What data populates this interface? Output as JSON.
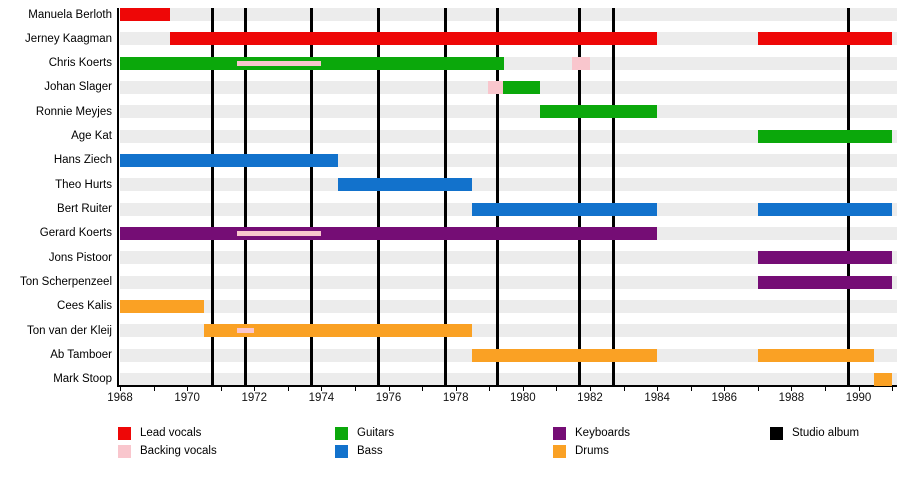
{
  "chart_data": {
    "type": "timeline",
    "x_axis": {
      "start": 1968,
      "end": 1991.2,
      "tick_interval": 1,
      "label_interval": 2,
      "tick_labels": [
        "1968",
        "1970",
        "1972",
        "1974",
        "1976",
        "1978",
        "1980",
        "1982",
        "1984",
        "1986",
        "1988",
        "1990"
      ]
    },
    "roles": {
      "Lead vocals": "#ee0707",
      "Backing vocals": "#f9c6cd",
      "Guitars": "#0ba80b",
      "Bass": "#1272cc",
      "Keyboards": "#750d75",
      "Drums": "#faa124",
      "Studio album": "#000000"
    },
    "albums": {
      "label": "Studio album",
      "years": [
        1970.75,
        1971.75,
        1973.7,
        1975.7,
        1977.7,
        1979.25,
        1981.7,
        1982.7,
        1989.7
      ]
    },
    "members": [
      {
        "name": "Manuela Berloth",
        "bars": [
          {
            "role": "Lead vocals",
            "start": 1968,
            "end": 1969.5
          }
        ]
      },
      {
        "name": "Jerney Kaagman",
        "bars": [
          {
            "role": "Lead vocals",
            "start": 1969.5,
            "end": 1984
          },
          {
            "role": "Lead vocals",
            "start": 1987,
            "end": 1991
          }
        ]
      },
      {
        "name": "Chris Koerts",
        "bars": [
          {
            "role": "Guitars",
            "start": 1968,
            "end": 1979.45
          },
          {
            "role": "Backing vocals",
            "start": 1971.5,
            "end": 1974,
            "overlay": true
          },
          {
            "role": "Backing vocals",
            "start": 1981.45,
            "end": 1982
          }
        ]
      },
      {
        "name": "Johan Slager",
        "bars": [
          {
            "role": "Backing vocals",
            "start": 1978.95,
            "end": 1979.4
          },
          {
            "role": "Guitars",
            "start": 1979.4,
            "end": 1980.5
          }
        ]
      },
      {
        "name": "Ronnie Meyjes",
        "bars": [
          {
            "role": "Guitars",
            "start": 1980.5,
            "end": 1984
          }
        ]
      },
      {
        "name": "Age Kat",
        "bars": [
          {
            "role": "Guitars",
            "start": 1987,
            "end": 1991
          }
        ]
      },
      {
        "name": "Hans Ziech",
        "bars": [
          {
            "role": "Bass",
            "start": 1968,
            "end": 1974.5
          }
        ]
      },
      {
        "name": "Theo Hurts",
        "bars": [
          {
            "role": "Bass",
            "start": 1974.5,
            "end": 1978.5
          }
        ]
      },
      {
        "name": "Bert Ruiter",
        "bars": [
          {
            "role": "Bass",
            "start": 1978.5,
            "end": 1984
          },
          {
            "role": "Bass",
            "start": 1987,
            "end": 1991
          }
        ]
      },
      {
        "name": "Gerard Koerts",
        "bars": [
          {
            "role": "Keyboards",
            "start": 1968,
            "end": 1984
          },
          {
            "role": "Backing vocals",
            "start": 1971.5,
            "end": 1974,
            "overlay": true
          }
        ]
      },
      {
        "name": "Jons Pistoor",
        "bars": [
          {
            "role": "Keyboards",
            "start": 1987,
            "end": 1991
          }
        ]
      },
      {
        "name": "Ton Scherpenzeel",
        "bars": [
          {
            "role": "Keyboards",
            "start": 1987,
            "end": 1991
          }
        ]
      },
      {
        "name": "Cees Kalis",
        "bars": [
          {
            "role": "Drums",
            "start": 1968,
            "end": 1970.5
          }
        ]
      },
      {
        "name": "Ton van der Kleij",
        "bars": [
          {
            "role": "Drums",
            "start": 1970.5,
            "end": 1978.5
          },
          {
            "role": "Backing vocals",
            "start": 1971.5,
            "end": 1972,
            "overlay": true
          }
        ]
      },
      {
        "name": "Ab Tamboer",
        "bars": [
          {
            "role": "Drums",
            "start": 1978.5,
            "end": 1984
          },
          {
            "role": "Drums",
            "start": 1987,
            "end": 1990.45
          }
        ]
      },
      {
        "name": "Mark Stoop",
        "bars": [
          {
            "role": "Drums",
            "start": 1990.45,
            "end": 1991
          }
        ]
      }
    ],
    "legend": {
      "columns": [
        [
          "Lead vocals",
          "Backing vocals"
        ],
        [
          "Guitars",
          "Bass"
        ],
        [
          "Keyboards",
          "Drums"
        ],
        [
          "Studio album"
        ]
      ]
    }
  }
}
